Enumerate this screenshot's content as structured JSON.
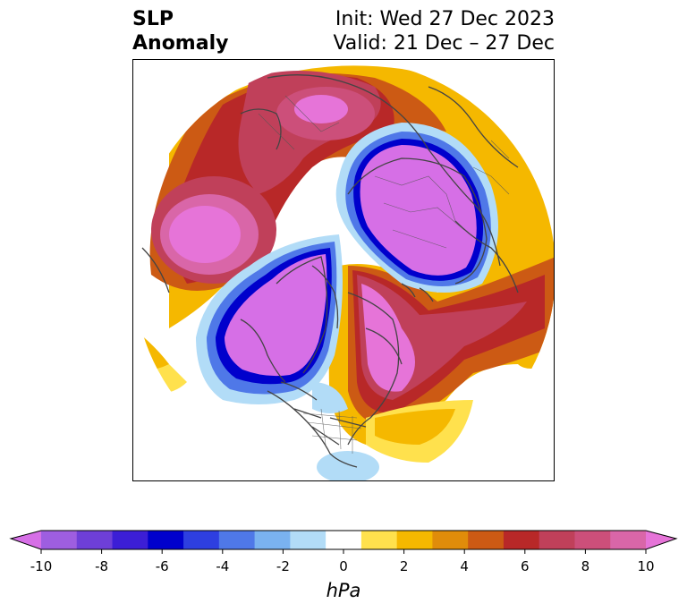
{
  "header": {
    "left_line1": "SLP",
    "left_line2": "Anomaly",
    "right_line1": "Init: Wed 27 Dec 2023",
    "right_line2": "Valid: 21 Dec – 27 Dec"
  },
  "colorbar": {
    "units": "hPa",
    "levels": [
      -10,
      -9,
      -8,
      -7,
      -6,
      -5,
      -4,
      -3,
      -2,
      -1,
      1,
      2,
      3,
      4,
      5,
      6,
      7,
      8,
      9,
      10
    ],
    "tick_values": [
      -10,
      -8,
      -6,
      -4,
      -2,
      0,
      2,
      4,
      6,
      8,
      10
    ],
    "tick_labels": [
      "-10",
      "-8",
      "-6",
      "-4",
      "-2",
      "0",
      "2",
      "4",
      "6",
      "8",
      "10"
    ],
    "colors": [
      "#d66fe6",
      "#9e5ee0",
      "#6e3fd8",
      "#3c1ed6",
      "#0000cc",
      "#2e3fe0",
      "#4f78e8",
      "#7ab2f0",
      "#b2dcf7",
      "#ffffff",
      "#ffe14d",
      "#f5b800",
      "#e08c0a",
      "#cc5a14",
      "#b82828",
      "#c0405a",
      "#cc4f7a",
      "#d966a8",
      "#e674d8"
    ],
    "extend": "both"
  },
  "map": {
    "projection": "north polar stereographic",
    "variable": "sea level pressure anomaly"
  }
}
